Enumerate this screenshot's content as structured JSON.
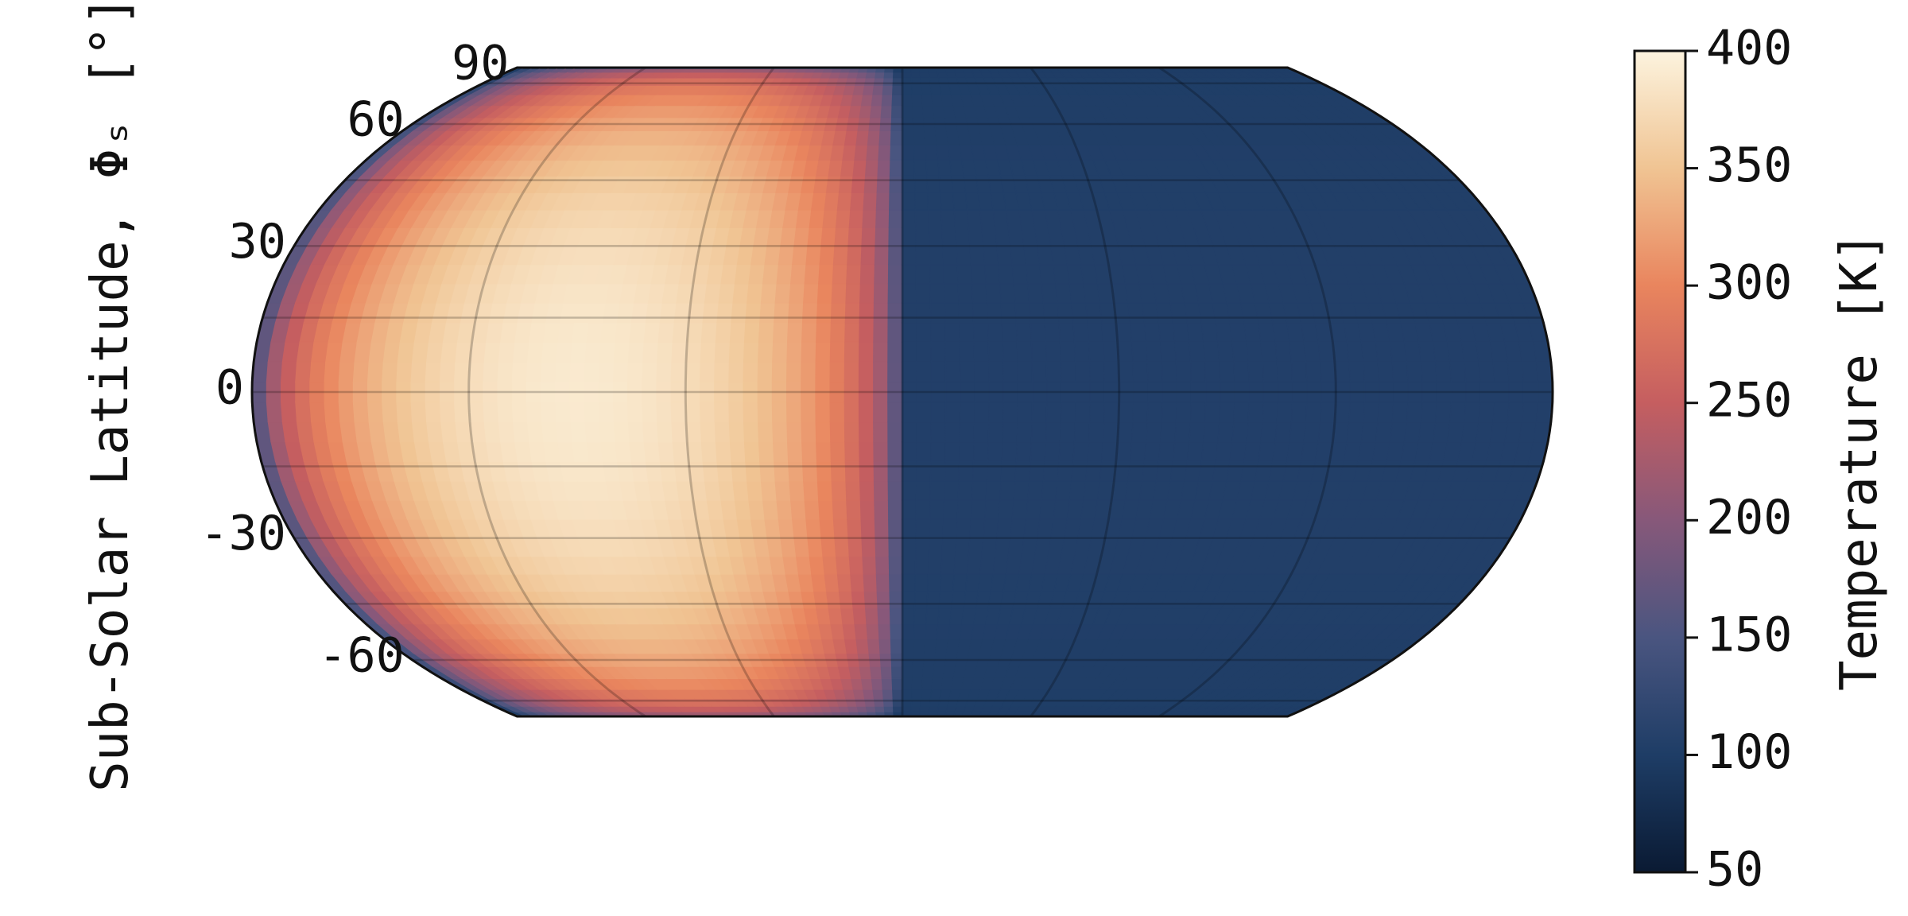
{
  "chart_data": {
    "type": "heatmap",
    "projection": "equal-earth",
    "ylabel": "Sub-Solar Latitude, Φₛ [°]",
    "latitude_ticks": [
      {
        "value": 90,
        "label": "90"
      },
      {
        "value": 60,
        "label": "60"
      },
      {
        "value": 30,
        "label": "30"
      },
      {
        "value": 0,
        "label": "0"
      },
      {
        "value": -30,
        "label": "-30"
      },
      {
        "value": -60,
        "label": "-60"
      }
    ],
    "lat_range": [
      -90,
      90
    ],
    "lon_range": [
      -180,
      180
    ],
    "gridlines": {
      "latitude_step": 15,
      "longitude_step": 60
    },
    "field": {
      "variable": "surface temperature",
      "peak_K": 390,
      "subsolar_longitude": -90,
      "subsolar_latitude": 0,
      "nightside_K": 100
    },
    "colorbar": {
      "label": "Temperature [K]",
      "min": 50,
      "max": 400,
      "ticks": [
        50,
        100,
        150,
        200,
        250,
        300,
        350,
        400
      ],
      "tick_labels": [
        "50",
        "100",
        "150",
        "200",
        "250",
        "300",
        "350",
        "400"
      ],
      "colormap": [
        {
          "v": 50,
          "color": "#0a1a33"
        },
        {
          "v": 100,
          "color": "#1e3d66"
        },
        {
          "v": 150,
          "color": "#4a5580"
        },
        {
          "v": 200,
          "color": "#87587a"
        },
        {
          "v": 250,
          "color": "#c55e60"
        },
        {
          "v": 300,
          "color": "#e9855e"
        },
        {
          "v": 350,
          "color": "#f0c493"
        },
        {
          "v": 400,
          "color": "#fcf3de"
        }
      ]
    }
  }
}
